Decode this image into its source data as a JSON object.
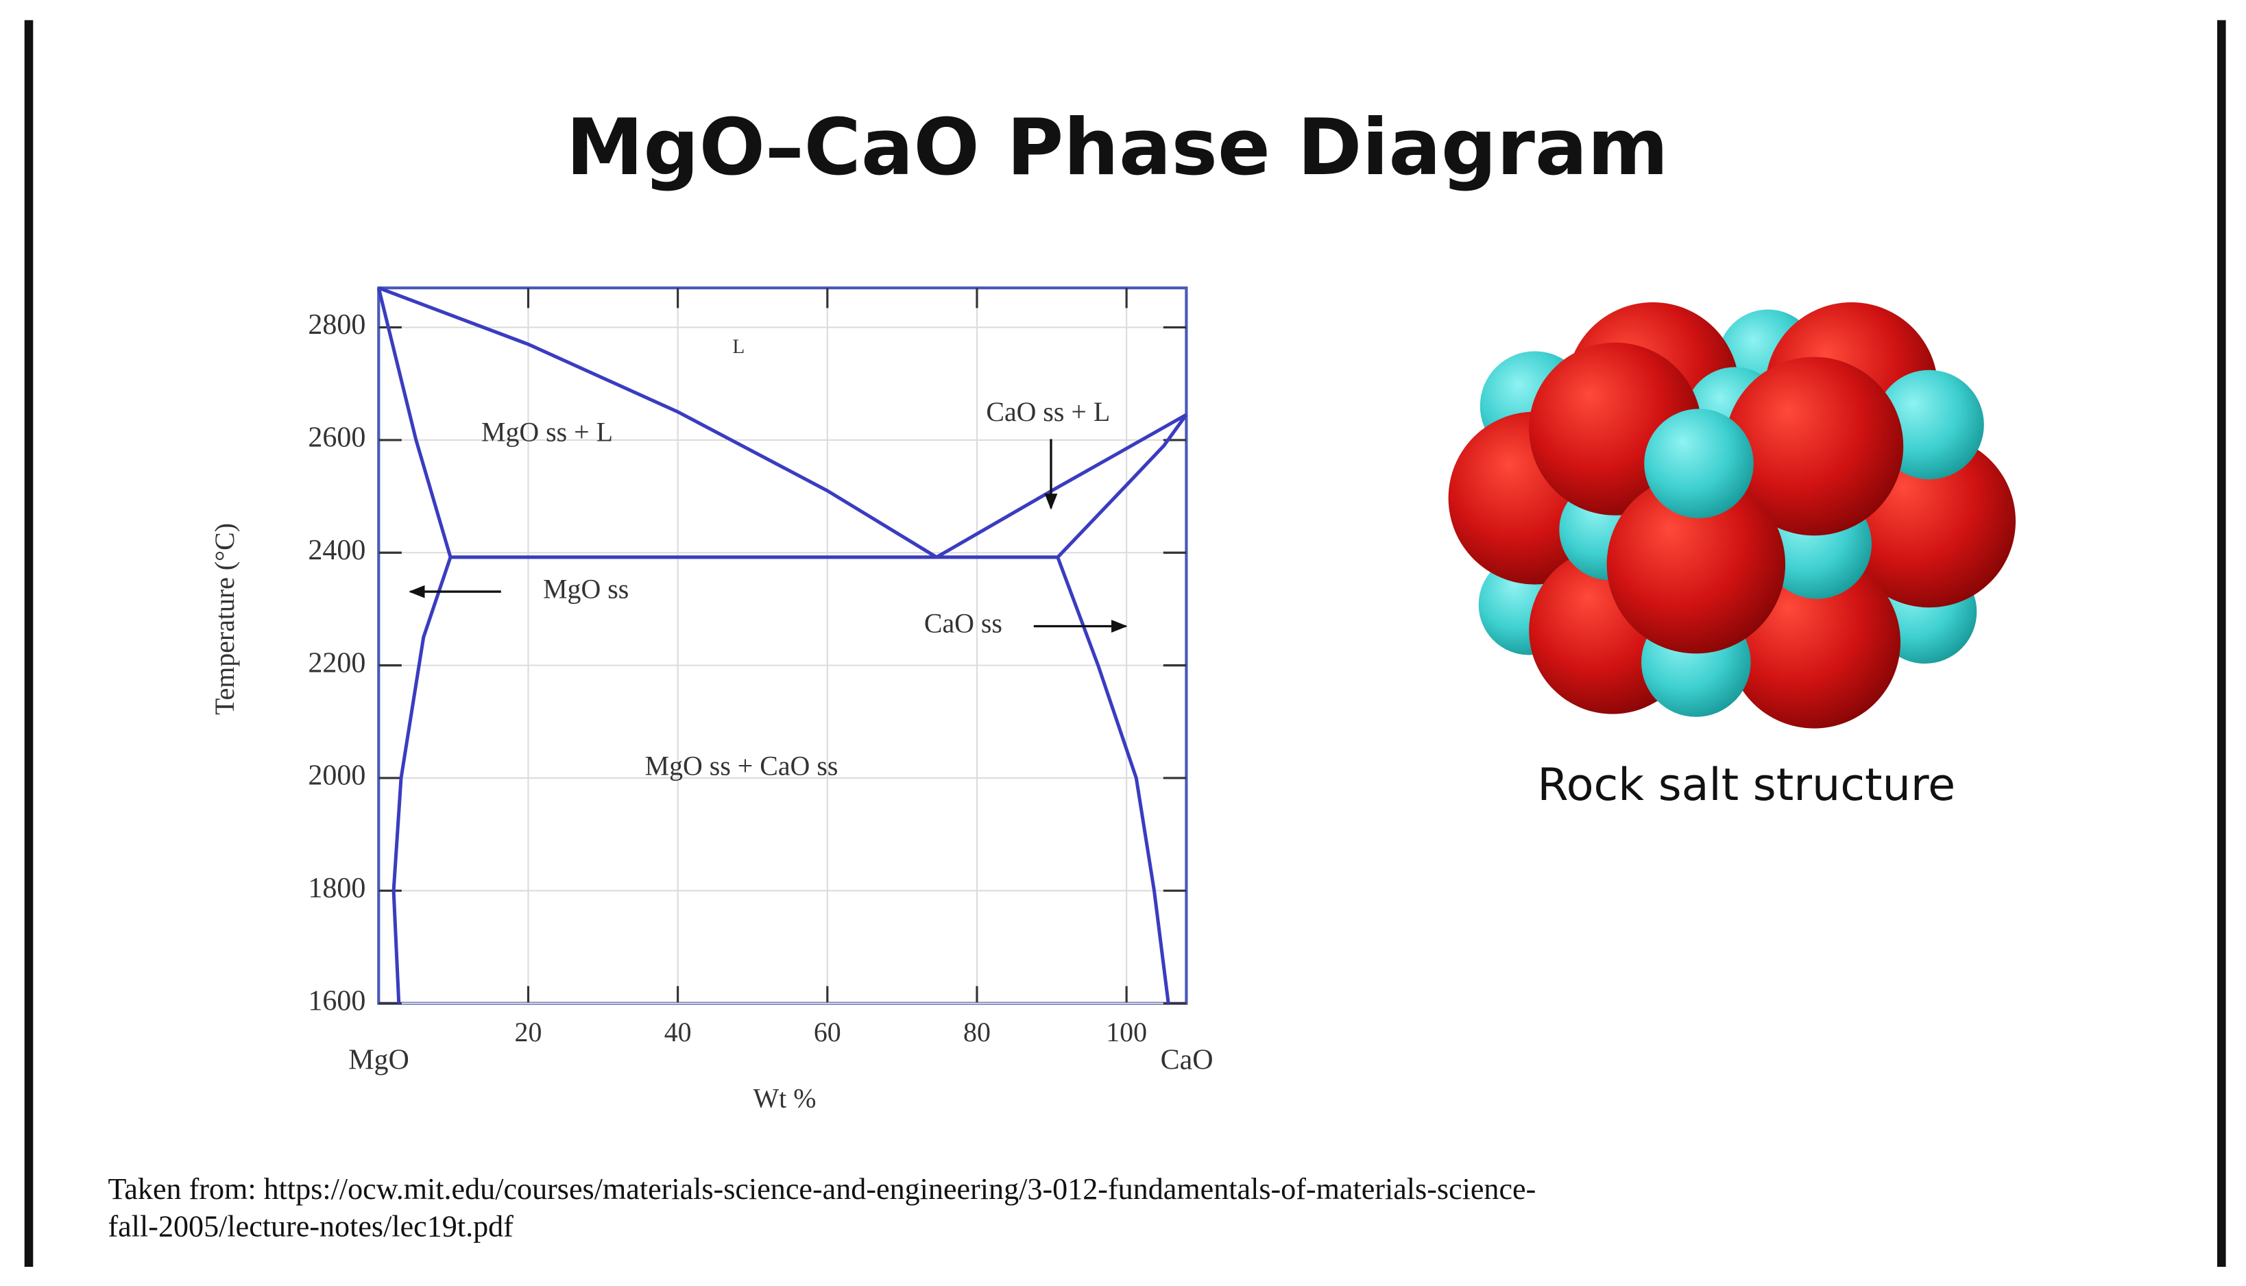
{
  "title": "MgO–CaO Phase Diagram",
  "diagram": {
    "type": "line",
    "y_label": "Temperature (°C)",
    "x_label": "Wt %",
    "x_left_label": "MgO",
    "x_right_label": "CaO",
    "xlim": [
      0,
      108
    ],
    "xticks": [
      20,
      40,
      60,
      80,
      100
    ],
    "ylim": [
      1600,
      2870
    ],
    "yticks": [
      1600,
      1800,
      2000,
      2200,
      2400,
      2600,
      2800
    ],
    "grid": true,
    "color": "#3a3cc0",
    "region_labels": [
      "L",
      "MgO ss + L",
      "CaO ss + L",
      "MgO ss",
      "CaO ss",
      "MgO ss + CaO ss"
    ],
    "boundaries": [
      {
        "x": [
          0,
          20,
          40,
          60,
          74.6
        ],
        "y": [
          2870,
          2770,
          2650,
          2510,
          2392
        ]
      },
      {
        "x": [
          74.6,
          90,
          108
        ],
        "y": [
          2392,
          2510,
          2645
        ]
      },
      {
        "x": [
          0,
          5,
          9.6
        ],
        "y": [
          2870,
          2600,
          2392
        ]
      },
      {
        "x": [
          9.6,
          6,
          3,
          2,
          2.7
        ],
        "y": [
          2392,
          2250,
          2000,
          1800,
          1600
        ]
      },
      {
        "x": [
          9.6,
          90.8
        ],
        "y": [
          2392,
          2392
        ]
      },
      {
        "x": [
          90.8,
          100,
          105,
          108
        ],
        "y": [
          2392,
          2520,
          2590,
          2645
        ]
      },
      {
        "x": [
          90.8,
          96.2,
          101.3,
          103.7,
          105.6
        ],
        "y": [
          2392,
          2200,
          2000,
          1800,
          1600
        ]
      }
    ]
  },
  "structure_caption": "Rock salt structure",
  "citation": [
    "Taken from: https://ocw.mit.edu/courses/materials-science-and-engineering/3-012-fundamentals-of-materials-science-",
    "fall-2005/lecture-notes/lec19t.pdf"
  ]
}
